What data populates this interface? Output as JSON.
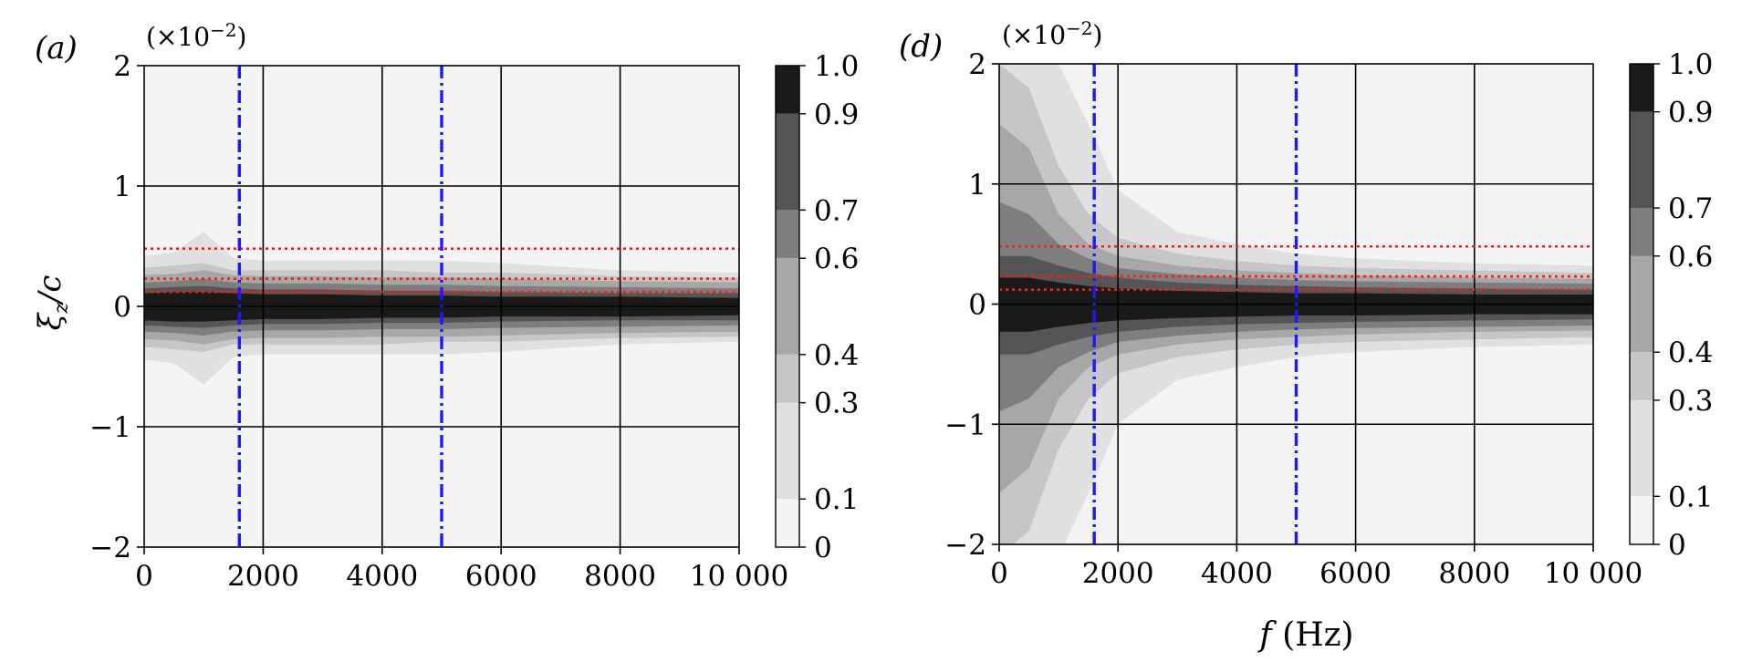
{
  "figure": {
    "panels": [
      {
        "id": "a",
        "label": "(a)",
        "multiplier": "(×10",
        "multiplier_exp": "−2",
        "multiplier_close": ")"
      },
      {
        "id": "d",
        "label": "(d)",
        "multiplier": "(×10",
        "multiplier_exp": "−2",
        "multiplier_close": ")"
      }
    ],
    "ylabel_main": "ξ",
    "ylabel_sub": "z",
    "ylabel_rest": "/c",
    "xlabel_main": "f",
    "xlabel_rest": " (Hz)",
    "colorbar_ticks": [
      "0",
      "0.1",
      "0.3",
      "0.4",
      "0.6",
      "0.7",
      "0.9",
      "1.0"
    ],
    "colors": {
      "vertical_lines": "#1a1aff",
      "horizontal_lines": "#ff1a1a",
      "contour_levels": [
        "#f4f4f4",
        "#e0e0e0",
        "#c6c6c6",
        "#a7a7a7",
        "#7e7e7e",
        "#555555",
        "#1a1a1a"
      ]
    }
  },
  "chart_data": [
    {
      "type": "heatmap",
      "panel": "(a)",
      "xlabel": "",
      "ylabel": "ξ_z/c",
      "y_multiplier": "×10^-2",
      "xlim": [
        0,
        10000
      ],
      "ylim": [
        -2,
        2
      ],
      "x_ticks": [
        0,
        2000,
        4000,
        6000,
        8000,
        10000
      ],
      "x_tick_labels": [
        "0",
        "2000",
        "4000",
        "6000",
        "8000",
        "10 000"
      ],
      "y_ticks": [
        -2,
        -1,
        0,
        1,
        2
      ],
      "y_tick_labels": [
        "−2",
        "−1",
        "0",
        "1",
        "2"
      ],
      "grid": true,
      "vertical_lines_x": [
        1600,
        5000
      ],
      "horizontal_lines_y": [
        0.48,
        0.23,
        0.12
      ],
      "colorbar": {
        "levels": [
          0,
          0.1,
          0.3,
          0.4,
          0.6,
          0.7,
          0.9,
          1.0
        ],
        "range": [
          0,
          1.0
        ]
      },
      "contour_halfwidths": {
        "f": [
          0,
          500,
          1000,
          1500,
          2000,
          3000,
          4000,
          5000,
          6000,
          8000,
          10000
        ],
        "level_0.1": [
          0.42,
          0.45,
          0.62,
          0.4,
          0.38,
          0.38,
          0.38,
          0.38,
          0.36,
          0.3,
          0.28
        ],
        "level_0.3": [
          0.32,
          0.34,
          0.36,
          0.3,
          0.3,
          0.3,
          0.3,
          0.28,
          0.28,
          0.25,
          0.24
        ],
        "level_0.4": [
          0.26,
          0.27,
          0.3,
          0.26,
          0.25,
          0.25,
          0.24,
          0.24,
          0.23,
          0.21,
          0.2
        ],
        "level_0.6": [
          0.2,
          0.21,
          0.23,
          0.2,
          0.19,
          0.19,
          0.18,
          0.18,
          0.17,
          0.16,
          0.15
        ],
        "level_0.7": [
          0.15,
          0.16,
          0.17,
          0.15,
          0.14,
          0.14,
          0.13,
          0.13,
          0.12,
          0.11,
          0.11
        ],
        "level_0.9": [
          0.11,
          0.12,
          0.12,
          0.11,
          0.1,
          0.1,
          0.09,
          0.09,
          0.08,
          0.08,
          0.07
        ]
      }
    },
    {
      "type": "heatmap",
      "panel": "(d)",
      "xlabel": "f (Hz)",
      "ylabel": "",
      "y_multiplier": "×10^-2",
      "xlim": [
        0,
        10000
      ],
      "ylim": [
        -2,
        2
      ],
      "x_ticks": [
        0,
        2000,
        4000,
        6000,
        8000,
        10000
      ],
      "x_tick_labels": [
        "0",
        "2000",
        "4000",
        "6000",
        "8000",
        "10 000"
      ],
      "y_ticks": [
        -2,
        -1,
        0,
        1,
        2
      ],
      "y_tick_labels": [
        "−2",
        "−1",
        "0",
        "1",
        "2"
      ],
      "grid": true,
      "vertical_lines_x": [
        1600,
        5000
      ],
      "horizontal_lines_y": [
        0.48,
        0.23,
        0.12
      ],
      "colorbar": {
        "levels": [
          0,
          0.1,
          0.3,
          0.4,
          0.6,
          0.7,
          0.9,
          1.0
        ],
        "range": [
          0,
          1.0
        ]
      },
      "contour_halfwidths": {
        "f": [
          0,
          500,
          1000,
          1500,
          2000,
          3000,
          4000,
          5000,
          6000,
          8000,
          10000
        ],
        "level_0.1": [
          2.0,
          2.0,
          2.0,
          1.5,
          0.95,
          0.6,
          0.5,
          0.42,
          0.38,
          0.34,
          0.32
        ],
        "level_0.3": [
          2.0,
          1.8,
          1.15,
          0.75,
          0.55,
          0.42,
          0.36,
          0.32,
          0.3,
          0.28,
          0.26
        ],
        "level_0.4": [
          1.5,
          1.3,
          0.75,
          0.5,
          0.4,
          0.32,
          0.28,
          0.26,
          0.24,
          0.22,
          0.21
        ],
        "level_0.6": [
          0.85,
          0.75,
          0.5,
          0.38,
          0.3,
          0.25,
          0.22,
          0.2,
          0.19,
          0.18,
          0.17
        ],
        "level_0.7": [
          0.4,
          0.4,
          0.32,
          0.26,
          0.22,
          0.18,
          0.16,
          0.15,
          0.14,
          0.13,
          0.12
        ],
        "level_0.9": [
          0.22,
          0.22,
          0.18,
          0.15,
          0.13,
          0.11,
          0.1,
          0.09,
          0.09,
          0.08,
          0.08
        ]
      }
    }
  ]
}
